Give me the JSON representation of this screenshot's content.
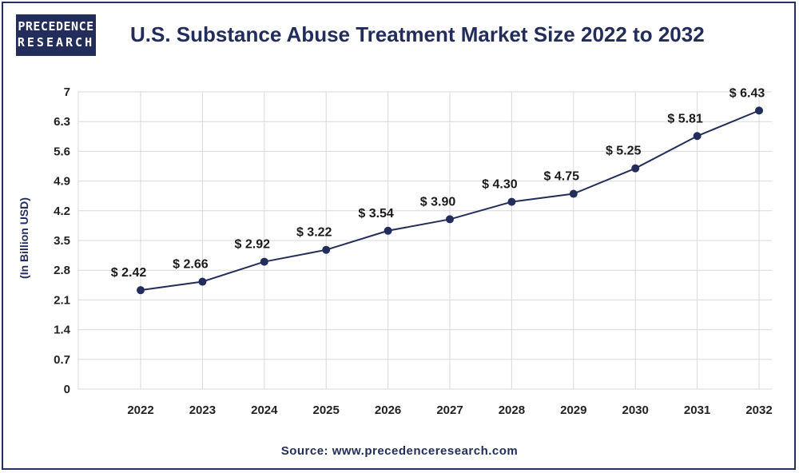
{
  "brand": {
    "line1": "PRECEDENCE",
    "line2": "RESEARCH"
  },
  "source": "Source: www.precedenceresearch.com",
  "colors": {
    "line": "#232d5c",
    "grid": "#d9d9d9",
    "text": "#232d5c"
  },
  "chart_data": {
    "type": "line",
    "title": "U.S. Substance Abuse Treatment Market Size 2022 to 2032",
    "xlabel": "",
    "ylabel": "(In Billion USD)",
    "ylim": [
      0,
      7
    ],
    "yticks": [
      "0",
      "0.7",
      "1.4",
      "2.1",
      "2.8",
      "3.5",
      "4.2",
      "4.9",
      "5.6",
      "6.3",
      "7"
    ],
    "categories": [
      "2022",
      "2023",
      "2024",
      "2025",
      "2026",
      "2027",
      "2028",
      "2029",
      "2030",
      "2031",
      "2032"
    ],
    "values": [
      2.42,
      2.66,
      2.92,
      3.22,
      3.54,
      3.9,
      4.3,
      4.75,
      5.25,
      5.81,
      6.43
    ],
    "plotted_values": [
      2.33,
      2.53,
      3.0,
      3.28,
      3.73,
      4.0,
      4.41,
      4.6,
      5.2,
      5.96,
      6.56
    ],
    "data_labels": [
      "$ 2.42",
      "$ 2.66",
      "$ 2.92",
      "$ 3.22",
      "$ 3.54",
      "$ 3.90",
      "$ 4.30",
      "$ 4.75",
      "$ 5.25",
      "$ 5.81",
      "$ 6.43"
    ],
    "grid": true
  }
}
